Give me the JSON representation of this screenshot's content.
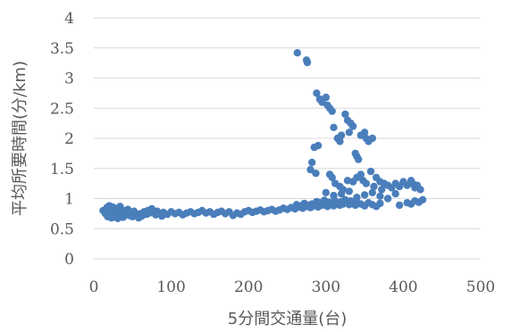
{
  "chart_data": {
    "type": "scatter",
    "title": "",
    "xlabel": "5分間交通量(台)",
    "ylabel": "平均所要時間(分/km)",
    "xlim": [
      0,
      500
    ],
    "ylim": [
      0,
      4
    ],
    "x_ticks": [
      "0",
      "100",
      "200",
      "300",
      "400",
      "500"
    ],
    "y_ticks": [
      "0",
      "0.5",
      "1",
      "1.5",
      "2",
      "2.5",
      "3",
      "3.5",
      "4"
    ],
    "grid": "horizontal",
    "legend": "none",
    "marker_color": "#4a7ebb",
    "series": [
      {
        "points": [
          [
            12,
            0.8
          ],
          [
            15,
            0.75
          ],
          [
            17,
            0.85
          ],
          [
            18,
            0.7
          ],
          [
            19,
            0.78
          ],
          [
            20,
            0.88
          ],
          [
            21,
            0.72
          ],
          [
            22,
            0.82
          ],
          [
            23,
            0.68
          ],
          [
            24,
            0.86
          ],
          [
            25,
            0.76
          ],
          [
            26,
            0.8
          ],
          [
            27,
            0.7
          ],
          [
            28,
            0.84
          ],
          [
            29,
            0.74
          ],
          [
            30,
            0.79
          ],
          [
            31,
            0.67
          ],
          [
            32,
            0.83
          ],
          [
            33,
            0.73
          ],
          [
            34,
            0.87
          ],
          [
            35,
            0.77
          ],
          [
            36,
            0.71
          ],
          [
            37,
            0.81
          ],
          [
            38,
            0.69
          ],
          [
            40,
            0.78
          ],
          [
            42,
            0.74
          ],
          [
            44,
            0.82
          ],
          [
            46,
            0.72
          ],
          [
            48,
            0.76
          ],
          [
            50,
            0.7
          ],
          [
            52,
            0.79
          ],
          [
            55,
            0.73
          ],
          [
            58,
            0.68
          ],
          [
            60,
            0.75
          ],
          [
            62,
            0.71
          ],
          [
            65,
            0.78
          ],
          [
            68,
            0.74
          ],
          [
            70,
            0.8
          ],
          [
            72,
            0.76
          ],
          [
            75,
            0.83
          ],
          [
            78,
            0.77
          ],
          [
            80,
            0.73
          ],
          [
            82,
            0.79
          ],
          [
            85,
            0.75
          ],
          [
            88,
            0.71
          ],
          [
            90,
            0.77
          ],
          [
            95,
            0.74
          ],
          [
            100,
            0.78
          ],
          [
            105,
            0.75
          ],
          [
            110,
            0.77
          ],
          [
            115,
            0.73
          ],
          [
            120,
            0.76
          ],
          [
            125,
            0.78
          ],
          [
            130,
            0.75
          ],
          [
            135,
            0.77
          ],
          [
            140,
            0.8
          ],
          [
            145,
            0.76
          ],
          [
            150,
            0.78
          ],
          [
            155,
            0.74
          ],
          [
            160,
            0.77
          ],
          [
            165,
            0.79
          ],
          [
            170,
            0.75
          ],
          [
            175,
            0.78
          ],
          [
            180,
            0.72
          ],
          [
            185,
            0.76
          ],
          [
            190,
            0.74
          ],
          [
            195,
            0.78
          ],
          [
            200,
            0.8
          ],
          [
            205,
            0.77
          ],
          [
            210,
            0.79
          ],
          [
            215,
            0.81
          ],
          [
            220,
            0.78
          ],
          [
            225,
            0.8
          ],
          [
            230,
            0.82
          ],
          [
            235,
            0.79
          ],
          [
            240,
            0.81
          ],
          [
            245,
            0.84
          ],
          [
            250,
            0.82
          ],
          [
            255,
            0.85
          ],
          [
            260,
            0.83
          ],
          [
            262,
            0.9
          ],
          [
            265,
            0.86
          ],
          [
            268,
            0.88
          ],
          [
            270,
            0.84
          ],
          [
            272,
            0.92
          ],
          [
            275,
            0.87
          ],
          [
            278,
            0.89
          ],
          [
            280,
            0.85
          ],
          [
            282,
            0.91
          ],
          [
            285,
            0.88
          ],
          [
            288,
            0.95
          ],
          [
            290,
            0.86
          ],
          [
            292,
            0.93
          ],
          [
            295,
            0.89
          ],
          [
            298,
            0.97
          ],
          [
            300,
            0.9
          ],
          [
            302,
            0.87
          ],
          [
            305,
            0.94
          ],
          [
            308,
            0.91
          ],
          [
            310,
            0.88
          ],
          [
            312,
            0.96
          ],
          [
            315,
            0.92
          ],
          [
            318,
            0.89
          ],
          [
            320,
            0.95
          ],
          [
            322,
            0.91
          ],
          [
            325,
            0.98
          ],
          [
            328,
            0.93
          ],
          [
            330,
            0.9
          ],
          [
            332,
            0.96
          ],
          [
            335,
            0.92
          ],
          [
            338,
            0.89
          ],
          [
            340,
            0.94
          ],
          [
            345,
            0.91
          ],
          [
            350,
            0.88
          ],
          [
            355,
            0.93
          ],
          [
            360,
            0.9
          ],
          [
            365,
            0.87
          ],
          [
            370,
            0.92
          ],
          [
            395,
            0.89
          ],
          [
            405,
            0.93
          ],
          [
            410,
            0.91
          ],
          [
            415,
            0.96
          ],
          [
            420,
            0.94
          ],
          [
            425,
            0.98
          ],
          [
            263,
            3.42
          ],
          [
            275,
            3.3
          ],
          [
            276,
            3.26
          ],
          [
            288,
            2.75
          ],
          [
            292,
            2.65
          ],
          [
            295,
            2.6
          ],
          [
            300,
            2.68
          ],
          [
            302,
            2.55
          ],
          [
            305,
            2.5
          ],
          [
            308,
            2.45
          ],
          [
            310,
            2.18
          ],
          [
            315,
            2.0
          ],
          [
            318,
            1.95
          ],
          [
            320,
            2.05
          ],
          [
            325,
            2.4
          ],
          [
            328,
            2.3
          ],
          [
            330,
            2.1
          ],
          [
            332,
            2.25
          ],
          [
            335,
            2.2
          ],
          [
            338,
            1.75
          ],
          [
            340,
            1.7
          ],
          [
            342,
            1.65
          ],
          [
            345,
            2.05
          ],
          [
            350,
            2.1
          ],
          [
            352,
            2.0
          ],
          [
            355,
            1.95
          ],
          [
            360,
            2.0
          ],
          [
            290,
            1.88
          ],
          [
            285,
            1.85
          ],
          [
            280,
            1.48
          ],
          [
            282,
            1.6
          ],
          [
            287,
            1.42
          ],
          [
            305,
            1.4
          ],
          [
            308,
            1.35
          ],
          [
            312,
            1.25
          ],
          [
            318,
            1.2
          ],
          [
            322,
            1.15
          ],
          [
            328,
            1.3
          ],
          [
            335,
            1.28
          ],
          [
            340,
            1.35
          ],
          [
            345,
            1.4
          ],
          [
            348,
            1.3
          ],
          [
            352,
            1.25
          ],
          [
            358,
            1.45
          ],
          [
            362,
            1.2
          ],
          [
            365,
            1.35
          ],
          [
            370,
            1.28
          ],
          [
            372,
            1.15
          ],
          [
            375,
            1.25
          ],
          [
            380,
            1.22
          ],
          [
            385,
            1.18
          ],
          [
            390,
            1.25
          ],
          [
            395,
            1.2
          ],
          [
            400,
            1.28
          ],
          [
            405,
            1.22
          ],
          [
            410,
            1.3
          ],
          [
            412,
            1.25
          ],
          [
            415,
            1.18
          ],
          [
            418,
            1.22
          ],
          [
            422,
            1.15
          ],
          [
            300,
            1.1
          ],
          [
            310,
            1.05
          ],
          [
            320,
            1.08
          ],
          [
            330,
            1.12
          ],
          [
            340,
            1.02
          ],
          [
            350,
            1.06
          ],
          [
            360,
            1.1
          ],
          [
            370,
            1.04
          ],
          [
            380,
            1.0
          ],
          [
            390,
            1.08
          ]
        ]
      }
    ]
  }
}
